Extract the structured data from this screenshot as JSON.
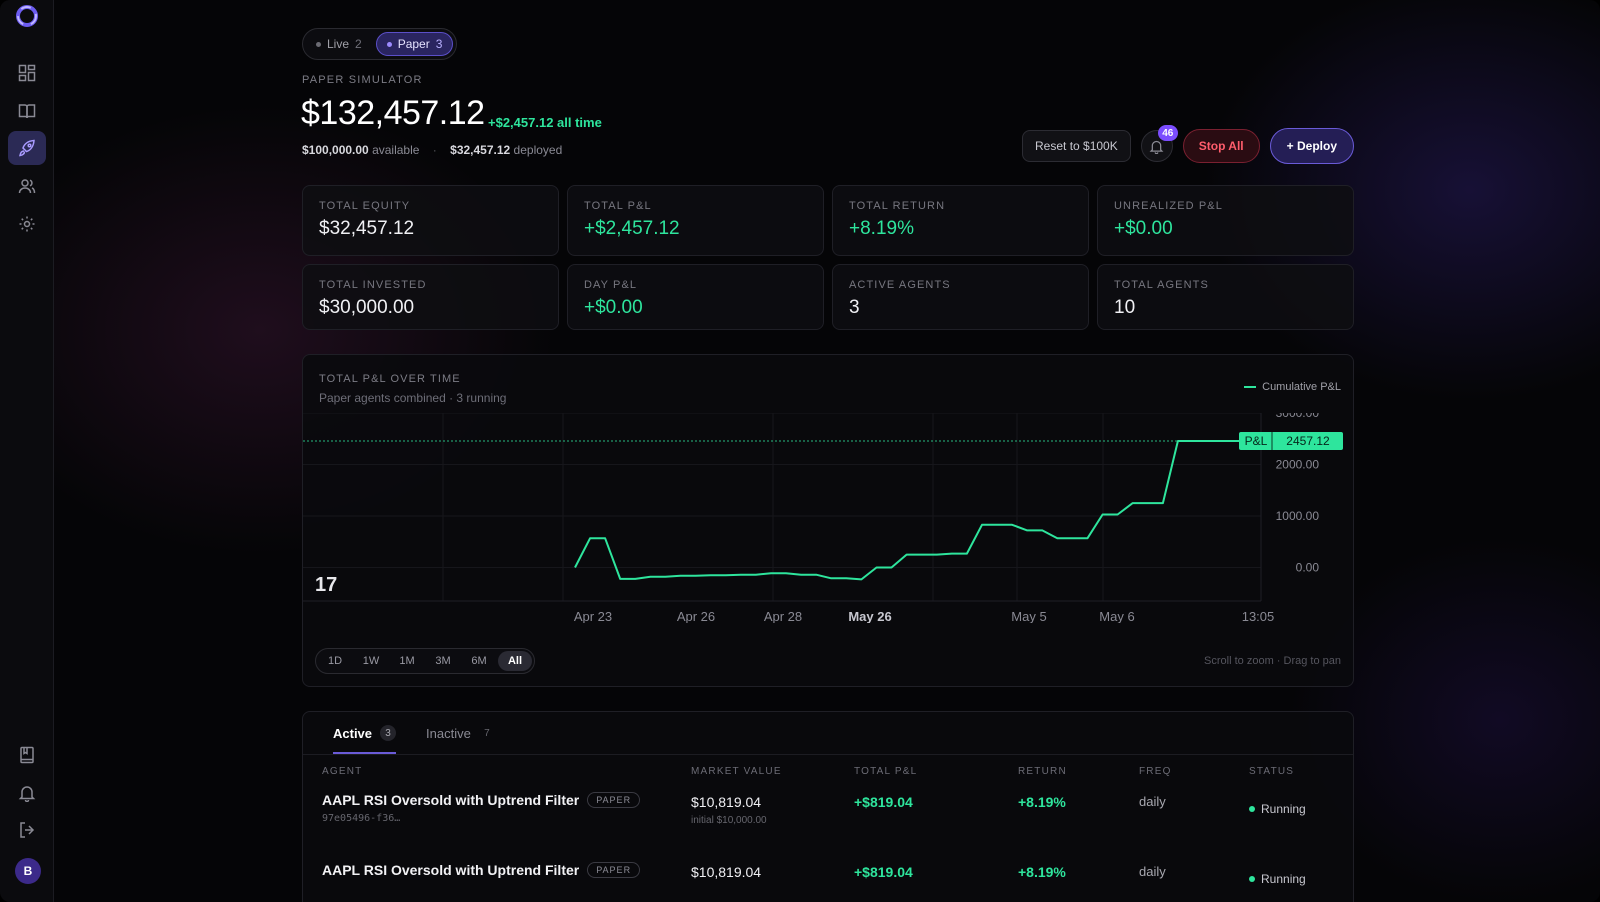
{
  "nav": {
    "items": [
      "dashboard",
      "library",
      "deploy",
      "team",
      "settings"
    ],
    "bottom": [
      "journal",
      "notifications",
      "logout"
    ],
    "avatar_initial": "B"
  },
  "mode": {
    "live_label": "Live",
    "live_count": "2",
    "paper_label": "Paper",
    "paper_count": "3",
    "active": "Paper"
  },
  "header": {
    "section_label": "PAPER SIMULATOR",
    "balance": "$132,457.12",
    "all_time": "+$2,457.12 all time",
    "available_value": "$100,000.00",
    "available_label": "available",
    "separator": "·",
    "deployed_value": "$32,457.12",
    "deployed_label": "deployed"
  },
  "actions": {
    "reset_label": "Reset to $100K",
    "notifications_count": "46",
    "stop_label": "Stop All",
    "deploy_label": "+ Deploy"
  },
  "stats": [
    {
      "label": "TOTAL EQUITY",
      "value": "$32,457.12",
      "tone": "neutral"
    },
    {
      "label": "TOTAL P&L",
      "value": "+$2,457.12",
      "tone": "green"
    },
    {
      "label": "TOTAL RETURN",
      "value": "+8.19%",
      "tone": "green"
    },
    {
      "label": "UNREALIZED P&L",
      "value": "+$0.00",
      "tone": "green"
    },
    {
      "label": "TOTAL INVESTED",
      "value": "$30,000.00",
      "tone": "neutral"
    },
    {
      "label": "DAY P&L",
      "value": "+$0.00",
      "tone": "green"
    },
    {
      "label": "ACTIVE AGENTS",
      "value": "3",
      "tone": "neutral"
    },
    {
      "label": "TOTAL AGENTS",
      "value": "10",
      "tone": "neutral"
    }
  ],
  "chart": {
    "title": "TOTAL P&L OVER TIME",
    "subtitle": "Paper agents combined · 3 running",
    "ranges": [
      "1D",
      "1W",
      "1M",
      "3M",
      "6M",
      "All"
    ],
    "active_range": "All",
    "hint": "Scroll to zoom · Drag to pan",
    "price_tag_label": "P&L",
    "price_tag_value": "2457.12",
    "logo_text": "17"
  },
  "chart_data": {
    "type": "line",
    "series": [
      {
        "name": "Cumulative P&L",
        "color": "#2ee59d",
        "values": [
          0,
          570,
          570,
          -220,
          -220,
          -180,
          -180,
          -160,
          -160,
          -150,
          -150,
          -140,
          -140,
          -110,
          -110,
          -140,
          -140,
          -210,
          -210,
          -230,
          0,
          0,
          250,
          250,
          250,
          270,
          270,
          830,
          830,
          830,
          720,
          720,
          570,
          570,
          570,
          1030,
          1030,
          1250,
          1250,
          1250,
          2457.12,
          2457.12
        ]
      }
    ],
    "x_tick_labels": [
      "Apr 23",
      "Apr 26",
      "Apr 28",
      "May 26",
      "May 5",
      "May 6",
      "13:05"
    ],
    "y_tick_labels": [
      "3000.00",
      "2000.00",
      "1000.00",
      "0.00"
    ],
    "ylim": [
      -650,
      3000
    ],
    "last_value": 2457.12,
    "grid": true,
    "legend": "top-right"
  },
  "tabs": [
    {
      "label": "Active",
      "count": "3"
    },
    {
      "label": "Inactive",
      "count": "7"
    }
  ],
  "table": {
    "headers": [
      "AGENT",
      "MARKET VALUE",
      "TOTAL P&L",
      "RETURN",
      "FREQ",
      "STATUS"
    ],
    "rows": [
      {
        "name": "AAPL RSI Oversold with Uptrend Filter",
        "badge": "PAPER",
        "id": "97e05496-f36…",
        "market_value": "$10,819.04",
        "initial": "initial $10,000.00",
        "pnl": "+$819.04",
        "return": "+8.19%",
        "freq": "daily",
        "status": "Running"
      },
      {
        "name": "AAPL RSI Oversold with Uptrend Filter",
        "badge": "PAPER",
        "id": "",
        "market_value": "$10,819.04",
        "initial": "",
        "pnl": "+$819.04",
        "return": "+8.19%",
        "freq": "daily",
        "status": "Running"
      }
    ]
  }
}
